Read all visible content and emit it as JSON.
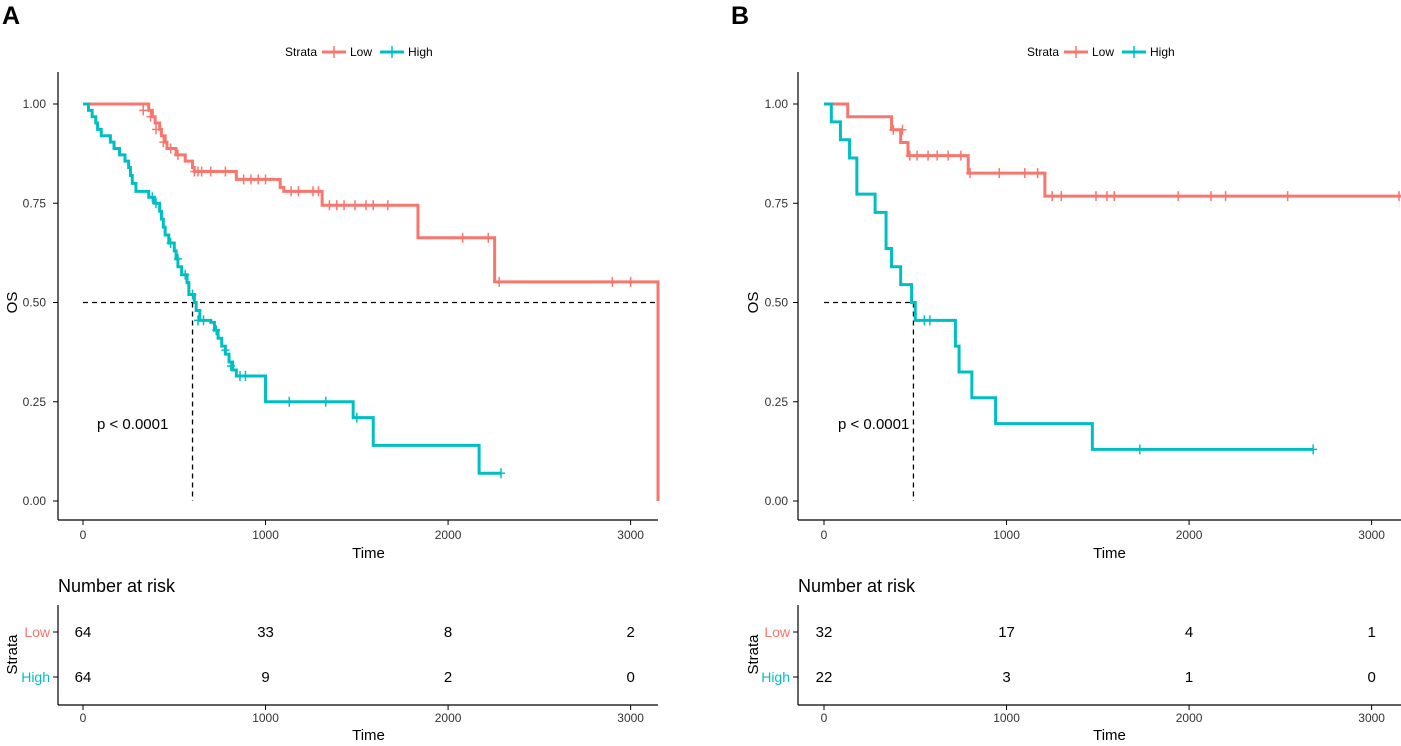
{
  "colors": {
    "low": "#F8766D",
    "high": "#00BFC4",
    "axis": "#000000"
  },
  "chart_data": [
    {
      "type": "line",
      "panel_label": "A",
      "legend": {
        "title": "Strata",
        "entries": [
          "Low",
          "High"
        ],
        "placement": "top-center"
      },
      "ylabel": "OS",
      "xlabel": "Time",
      "xlim": [
        -20,
        3160
      ],
      "ylim": [
        0,
        1
      ],
      "xticks": [
        0,
        1000,
        2000,
        3000
      ],
      "yticks": [
        "0.00",
        "0.25",
        "0.50",
        "0.75",
        "1.00"
      ],
      "pvalue_text": "p < 0.0001",
      "median_survival": [
        {
          "series": "High",
          "time": 600
        },
        {
          "series": "Low",
          "time": 3150
        }
      ],
      "series": [
        {
          "name": "Low",
          "steps": [
            [
              0,
              1.0
            ],
            [
              360,
              0.984
            ],
            [
              380,
              0.968
            ],
            [
              395,
              0.952
            ],
            [
              420,
              0.936
            ],
            [
              430,
              0.92
            ],
            [
              450,
              0.904
            ],
            [
              460,
              0.888
            ],
            [
              510,
              0.872
            ],
            [
              560,
              0.856
            ],
            [
              600,
              0.84
            ],
            [
              610,
              0.83
            ],
            [
              840,
              0.81
            ],
            [
              1080,
              0.79
            ],
            [
              1100,
              0.78
            ],
            [
              1310,
              0.745
            ],
            [
              1830,
              0.745
            ],
            [
              1835,
              0.663
            ],
            [
              2250,
              0.663
            ],
            [
              2255,
              0.552
            ],
            [
              3150,
              0.552
            ],
            [
              3150,
              0.0
            ]
          ],
          "censors": [
            [
              330,
              0.984
            ],
            [
              370,
              0.968
            ],
            [
              400,
              0.936
            ],
            [
              440,
              0.904
            ],
            [
              480,
              0.888
            ],
            [
              520,
              0.872
            ],
            [
              610,
              0.83
            ],
            [
              630,
              0.83
            ],
            [
              650,
              0.83
            ],
            [
              700,
              0.83
            ],
            [
              780,
              0.83
            ],
            [
              880,
              0.81
            ],
            [
              920,
              0.81
            ],
            [
              960,
              0.81
            ],
            [
              1000,
              0.81
            ],
            [
              1140,
              0.78
            ],
            [
              1180,
              0.78
            ],
            [
              1260,
              0.78
            ],
            [
              1290,
              0.78
            ],
            [
              1350,
              0.745
            ],
            [
              1390,
              0.745
            ],
            [
              1430,
              0.745
            ],
            [
              1490,
              0.745
            ],
            [
              1550,
              0.745
            ],
            [
              1590,
              0.745
            ],
            [
              1670,
              0.745
            ],
            [
              2080,
              0.663
            ],
            [
              2220,
              0.663
            ],
            [
              2280,
              0.552
            ],
            [
              2900,
              0.552
            ],
            [
              3000,
              0.552
            ]
          ]
        },
        {
          "name": "High",
          "steps": [
            [
              0,
              1.0
            ],
            [
              30,
              0.984
            ],
            [
              50,
              0.968
            ],
            [
              70,
              0.952
            ],
            [
              80,
              0.936
            ],
            [
              100,
              0.92
            ],
            [
              150,
              0.904
            ],
            [
              170,
              0.888
            ],
            [
              200,
              0.872
            ],
            [
              230,
              0.856
            ],
            [
              250,
              0.84
            ],
            [
              260,
              0.82
            ],
            [
              270,
              0.8
            ],
            [
              290,
              0.78
            ],
            [
              360,
              0.765
            ],
            [
              390,
              0.75
            ],
            [
              420,
              0.73
            ],
            [
              430,
              0.71
            ],
            [
              440,
              0.69
            ],
            [
              450,
              0.67
            ],
            [
              470,
              0.65
            ],
            [
              500,
              0.63
            ],
            [
              510,
              0.61
            ],
            [
              520,
              0.59
            ],
            [
              540,
              0.57
            ],
            [
              570,
              0.55
            ],
            [
              580,
              0.52
            ],
            [
              610,
              0.5
            ],
            [
              620,
              0.48
            ],
            [
              640,
              0.455
            ],
            [
              700,
              0.45
            ],
            [
              720,
              0.43
            ],
            [
              740,
              0.41
            ],
            [
              760,
              0.39
            ],
            [
              780,
              0.37
            ],
            [
              800,
              0.35
            ],
            [
              820,
              0.33
            ],
            [
              840,
              0.315
            ],
            [
              1000,
              0.25
            ],
            [
              1480,
              0.21
            ],
            [
              1590,
              0.14
            ],
            [
              2170,
              0.07
            ],
            [
              2290,
              0.07
            ]
          ],
          "censors": [
            [
              380,
              0.765
            ],
            [
              400,
              0.75
            ],
            [
              480,
              0.65
            ],
            [
              520,
              0.61
            ],
            [
              560,
              0.57
            ],
            [
              600,
              0.52
            ],
            [
              630,
              0.455
            ],
            [
              660,
              0.455
            ],
            [
              730,
              0.43
            ],
            [
              780,
              0.38
            ],
            [
              810,
              0.34
            ],
            [
              860,
              0.315
            ],
            [
              890,
              0.315
            ],
            [
              1130,
              0.25
            ],
            [
              1330,
              0.25
            ],
            [
              1500,
              0.21
            ],
            [
              2290,
              0.07
            ]
          ]
        }
      ],
      "risk_table": {
        "title": "Number at risk",
        "ylabel": "Strata",
        "xlabel": "Time",
        "rows": [
          {
            "label": "Low",
            "values": [
              "64",
              "33",
              "8",
              "2"
            ]
          },
          {
            "label": "High",
            "values": [
              "64",
              "9",
              "2",
              "0"
            ]
          }
        ]
      }
    },
    {
      "type": "line",
      "panel_label": "B",
      "legend": {
        "title": "Strata",
        "entries": [
          "Low",
          "High"
        ],
        "placement": "top-center"
      },
      "ylabel": "OS",
      "xlabel": "Time",
      "xlim": [
        -20,
        3160
      ],
      "ylim": [
        0,
        1
      ],
      "xticks": [
        0,
        1000,
        2000,
        3000
      ],
      "yticks": [
        "0.00",
        "0.25",
        "0.50",
        "0.75",
        "1.00"
      ],
      "pvalue_text": "p < 0.0001",
      "median_survival": [
        {
          "series": "High",
          "time": 490
        }
      ],
      "series": [
        {
          "name": "Low",
          "steps": [
            [
              0,
              1.0
            ],
            [
              130,
              0.968
            ],
            [
              370,
              0.935
            ],
            [
              420,
              0.903
            ],
            [
              460,
              0.87
            ],
            [
              780,
              0.87
            ],
            [
              790,
              0.826
            ],
            [
              1200,
              0.826
            ],
            [
              1210,
              0.768
            ],
            [
              3160,
              0.768
            ]
          ],
          "censors": [
            [
              380,
              0.935
            ],
            [
              430,
              0.935
            ],
            [
              470,
              0.87
            ],
            [
              510,
              0.87
            ],
            [
              570,
              0.87
            ],
            [
              620,
              0.87
            ],
            [
              680,
              0.87
            ],
            [
              750,
              0.87
            ],
            [
              800,
              0.826
            ],
            [
              960,
              0.826
            ],
            [
              1100,
              0.826
            ],
            [
              1170,
              0.826
            ],
            [
              1250,
              0.768
            ],
            [
              1300,
              0.768
            ],
            [
              1490,
              0.768
            ],
            [
              1550,
              0.768
            ],
            [
              1590,
              0.768
            ],
            [
              1940,
              0.768
            ],
            [
              2120,
              0.768
            ],
            [
              2200,
              0.768
            ],
            [
              2540,
              0.768
            ],
            [
              3150,
              0.768
            ]
          ]
        },
        {
          "name": "High",
          "steps": [
            [
              0,
              1.0
            ],
            [
              40,
              0.955
            ],
            [
              90,
              0.91
            ],
            [
              140,
              0.864
            ],
            [
              180,
              0.773
            ],
            [
              280,
              0.727
            ],
            [
              340,
              0.636
            ],
            [
              370,
              0.59
            ],
            [
              420,
              0.545
            ],
            [
              480,
              0.5
            ],
            [
              500,
              0.455
            ],
            [
              720,
              0.39
            ],
            [
              740,
              0.325
            ],
            [
              810,
              0.26
            ],
            [
              940,
              0.195
            ],
            [
              1470,
              0.13
            ],
            [
              2680,
              0.13
            ]
          ],
          "censors": [
            [
              550,
              0.455
            ],
            [
              580,
              0.455
            ],
            [
              1730,
              0.13
            ],
            [
              2680,
              0.13
            ]
          ]
        }
      ],
      "risk_table": {
        "title": "Number at risk",
        "ylabel": "Strata",
        "xlabel": "Time",
        "rows": [
          {
            "label": "Low",
            "values": [
              "32",
              "17",
              "4",
              "1"
            ]
          },
          {
            "label": "High",
            "values": [
              "22",
              "3",
              "1",
              "0"
            ]
          }
        ]
      }
    }
  ]
}
